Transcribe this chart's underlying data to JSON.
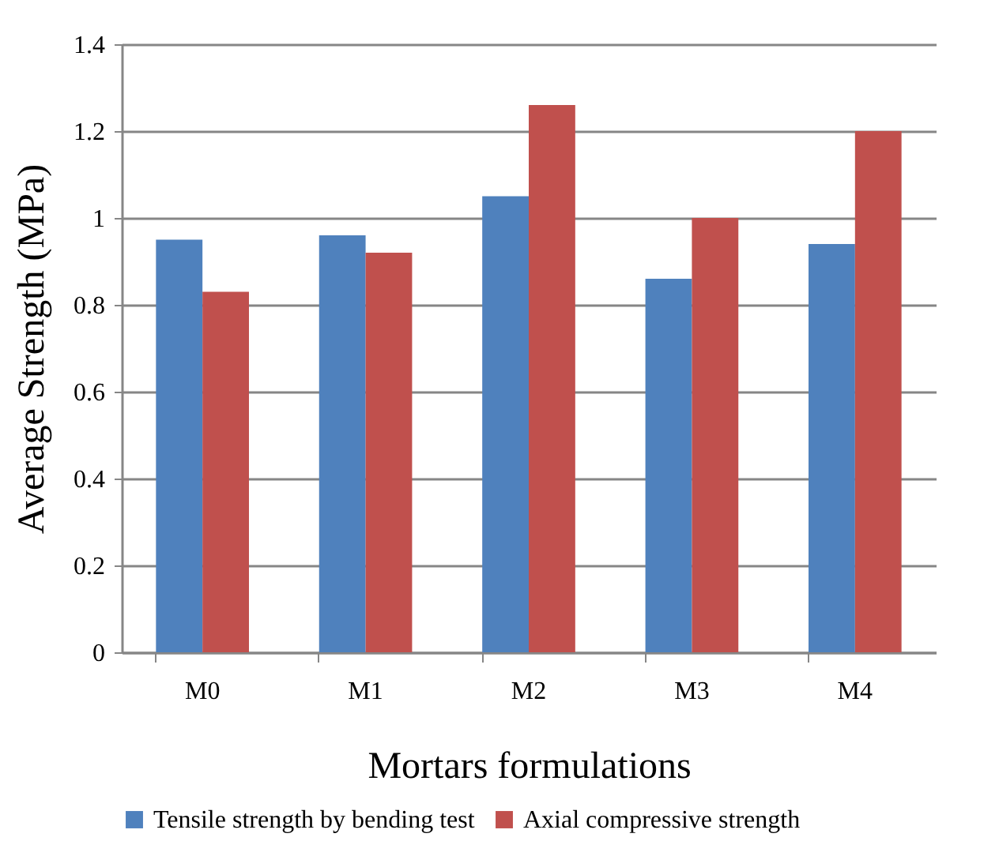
{
  "chart_data": {
    "type": "bar",
    "xlabel": "Mortars formulations",
    "ylabel": "Average Strength (MPa)",
    "categories": [
      "M0",
      "M1",
      "M2",
      "M3",
      "M4"
    ],
    "series": [
      {
        "name": "Tensile strength by bending test",
        "color": "#4f81bd",
        "values": [
          0.95,
          0.96,
          1.05,
          0.86,
          0.94
        ]
      },
      {
        "name": "Axial compressive strength",
        "color": "#c0504d",
        "values": [
          0.83,
          0.92,
          1.26,
          1.0,
          1.2
        ]
      }
    ],
    "ylim": [
      0,
      1.4
    ],
    "yticks": [
      0,
      0.2,
      0.4,
      0.6,
      0.8,
      1,
      1.2,
      1.4
    ],
    "grid": "y",
    "legend": "bottom"
  }
}
